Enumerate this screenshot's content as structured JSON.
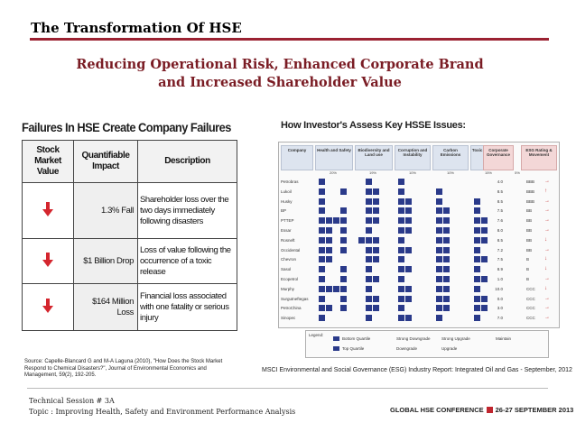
{
  "slide": {
    "title": "The Transformation Of HSE",
    "subtitle_line1": "Reducing Operational Risk, Enhanced Corporate Brand",
    "subtitle_line2": "and Increased Shareholder Value",
    "colors": {
      "accent_rule": "#9b2232",
      "subtitle": "#7a1c24",
      "arrow": "#d4262e",
      "matrix_fill": "#2a3a8a"
    }
  },
  "failures": {
    "heading": "Failures In HSE Create Company Failures",
    "columns": [
      "Stock Market Value",
      "Quantifiable Impact",
      "Description"
    ],
    "rows": [
      {
        "impact": "1.3% Fall",
        "description": "Shareholder loss over the two days immediately following disasters",
        "icon": "down-arrow-icon"
      },
      {
        "impact": "$1 Billion Drop",
        "description": "Loss of value following the occurrence of a toxic release",
        "icon": "down-arrow-icon"
      },
      {
        "impact": "$164 Million Loss",
        "description": "Financial loss associated with one fatality or serious injury",
        "icon": "down-arrow-icon"
      }
    ],
    "source": "Source: Capelle-Blancard G and M-A Laguna (2010), \"How Does the Stock Market Respond to Chemical Disasters?\", Journal of Environmental Economics and Management, 59(2), 192-205."
  },
  "investor": {
    "heading": "How Investor's Assess Key HSSE Issues:",
    "columns": [
      "Company",
      "Health and Safety",
      "Biodiversity and Land use",
      "Corruption and Instability",
      "Carbon Emissions",
      "Toxic Releases",
      "Corporate Governance",
      "ESG Rating & Movement"
    ],
    "weights": [
      "20%",
      "19%",
      "10%",
      "10%",
      "15%",
      "5%"
    ],
    "rows": [
      {
        "company": "Petrobras",
        "score": "4.0",
        "rating": "BBB",
        "move": "→"
      },
      {
        "company": "Lukoil",
        "score": "8.5",
        "rating": "BBB",
        "move": "↑"
      },
      {
        "company": "Husky",
        "score": "8.5",
        "rating": "BBB",
        "move": "→"
      },
      {
        "company": "BP",
        "score": "7.5",
        "rating": "BB",
        "move": "→"
      },
      {
        "company": "PTTEP",
        "score": "7.6",
        "rating": "BB",
        "move": "→"
      },
      {
        "company": "Essar",
        "score": "8.0",
        "rating": "BB",
        "move": "→"
      },
      {
        "company": "Rosneft",
        "score": "8.5",
        "rating": "BB",
        "move": "↓"
      },
      {
        "company": "Occidental",
        "score": "7.2",
        "rating": "BB",
        "move": "→"
      },
      {
        "company": "Chevron",
        "score": "7.5",
        "rating": "B",
        "move": "↓"
      },
      {
        "company": "Sasol",
        "score": "8.9",
        "rating": "B",
        "move": "↓"
      },
      {
        "company": "Ecopetrol",
        "score": "1.0",
        "rating": "B",
        "move": "→"
      },
      {
        "company": "Murphy",
        "score": "10.0",
        "rating": "CCC",
        "move": "↓"
      },
      {
        "company": "Surgutneftegas",
        "score": "0.0",
        "rating": "CCC",
        "move": "→"
      },
      {
        "company": "PetroChina",
        "score": "3.0",
        "rating": "CCC",
        "move": "→"
      },
      {
        "company": "Sinopec",
        "score": "7.0",
        "rating": "CCC",
        "move": "→"
      }
    ],
    "legend": {
      "title": "Legend:",
      "items": [
        "Bottom Quartile",
        "Top Quartile",
        "Strong Downgrade",
        "Downgrade",
        "Strong Upgrade",
        "Upgrade",
        "Maintain"
      ]
    },
    "caption": "MSCI Environmental and Social Governance (ESG) Industry Report: Integrated Oil and Gas - September, 2012"
  },
  "footer": {
    "session": "Technical Session # 3A",
    "topic": "Topic : Improving Health, Safety and Environment Performance Analysis",
    "conference": "GLOBAL HSE CONFERENCE",
    "dates": "26-27 SEPTEMBER 2013"
  }
}
